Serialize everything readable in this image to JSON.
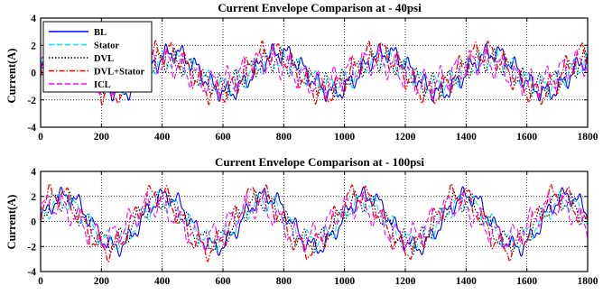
{
  "colors": {
    "BL": "#0000ff",
    "Stator": "#00e5ff",
    "DVL": "#000000",
    "DVL+Stator": "#ff0000",
    "ICL": "#ff00ff"
  },
  "chart_data": [
    {
      "type": "line",
      "title": "Current Envelope  Comparison at  - 40psi",
      "xlabel": "",
      "ylabel": "Current(A)",
      "xlim": [
        0,
        1800
      ],
      "ylim": [
        -4,
        4
      ],
      "xticks": [
        0,
        200,
        400,
        600,
        800,
        1000,
        1200,
        1400,
        1600,
        1800
      ],
      "yticks": [
        -4,
        -2,
        0,
        2,
        4
      ],
      "grid": "dotted",
      "legend": "top-left",
      "series": [
        {
          "name": "BL",
          "style": "solid",
          "envelope_period": 350,
          "envelope_peak": 2.0,
          "carrier_period": 50,
          "phase": 0.0
        },
        {
          "name": "Stator",
          "style": "dashed",
          "envelope_period": 350,
          "envelope_peak": 1.6,
          "carrier_period": 50,
          "phase": 0.6
        },
        {
          "name": "DVL",
          "style": "dotted",
          "envelope_period": 350,
          "envelope_peak": 1.7,
          "carrier_period": 50,
          "phase": 1.2
        },
        {
          "name": "DVL+Stator",
          "style": "dashdot",
          "envelope_period": 350,
          "envelope_peak": 2.3,
          "carrier_period": 50,
          "phase": 1.8
        },
        {
          "name": "ICL",
          "style": "dashed",
          "envelope_period": 350,
          "envelope_peak": 1.7,
          "carrier_period": 50,
          "phase": 2.4
        }
      ]
    },
    {
      "type": "line",
      "title": "Current Envelope  Comparison at  - 100psi",
      "xlabel": "",
      "ylabel": "Current(A)",
      "xlim": [
        0,
        1800
      ],
      "ylim": [
        -4,
        4
      ],
      "xticks": [
        0,
        200,
        400,
        600,
        800,
        1000,
        1200,
        1400,
        1600,
        1800
      ],
      "yticks": [
        -4,
        -2,
        0,
        2,
        4
      ],
      "grid": "dotted",
      "legend": "none",
      "series": [
        {
          "name": "BL",
          "style": "solid",
          "envelope_period": 330,
          "envelope_peak": 2.6,
          "carrier_period": 55,
          "phase": 0.0
        },
        {
          "name": "Stator",
          "style": "dashed",
          "envelope_period": 330,
          "envelope_peak": 2.2,
          "carrier_period": 55,
          "phase": 0.6
        },
        {
          "name": "DVL",
          "style": "dotted",
          "envelope_period": 330,
          "envelope_peak": 2.4,
          "carrier_period": 55,
          "phase": 1.2
        },
        {
          "name": "DVL+Stator",
          "style": "dashdot",
          "envelope_period": 330,
          "envelope_peak": 3.0,
          "carrier_period": 55,
          "phase": 1.8
        },
        {
          "name": "ICL",
          "style": "dashed",
          "envelope_period": 330,
          "envelope_peak": 2.2,
          "carrier_period": 55,
          "phase": 2.4
        }
      ]
    }
  ]
}
